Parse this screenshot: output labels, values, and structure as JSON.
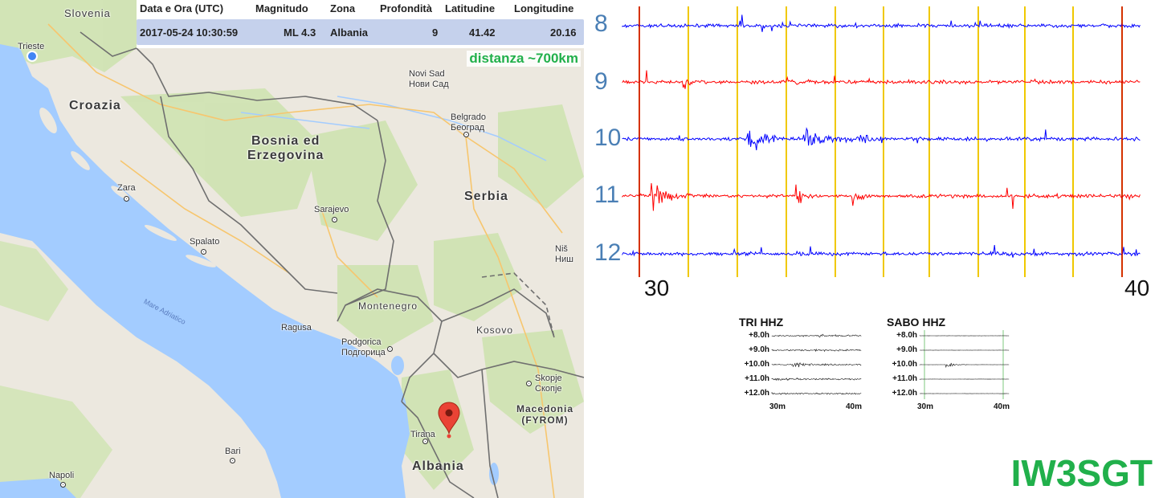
{
  "event_table": {
    "headers": [
      "Data e Ora (UTC)",
      "Magnitudo",
      "Zona",
      "Profondità",
      "Latitudine",
      "Longitudine"
    ],
    "row": [
      "2017-05-24 10:30:59",
      "ML 4.3",
      "Albania",
      "9",
      "41.42",
      "20.16"
    ]
  },
  "distance_label": "distanza ~700km",
  "map": {
    "countries": [
      "Slovenia",
      "Croazia",
      "Bosnia ed\nErzegovina",
      "Serbia",
      "Montenegro",
      "Kosovo",
      "Macedonia\n(FYROM)",
      "Albania"
    ],
    "cities": [
      "Trieste",
      "Zara",
      "Spalato",
      "Sarajevo",
      "Novi Sad\nНови Сад",
      "Belgrado\nБеоград",
      "Niš\nНиш",
      "Ragusa",
      "Podgorica\nПодгорица",
      "Skopje\nСкопје",
      "Tirana",
      "Bari",
      "Napoli"
    ],
    "sea": "Mare Adriatico",
    "colors": {
      "sea": "#a3ccff",
      "land": "#ece8df",
      "green": "#cfe3b1",
      "border": "#6f6f6f"
    }
  },
  "helicorder": {
    "hour_labels": [
      "8",
      "9",
      "10",
      "11",
      "12"
    ],
    "x_tick_labels": [
      "30",
      "40"
    ],
    "trace_colors": [
      "#0000ff",
      "#ff0000",
      "#0000ff",
      "#ff0000",
      "#0000ff"
    ],
    "marker_colors": {
      "minute": "#f0c800",
      "event": "#cc0000"
    }
  },
  "thumbnails": [
    {
      "title": "TRI HHZ",
      "hour_labels": [
        "+8.0h",
        "+9.0h",
        "+10.0h",
        "+11.0h",
        "+12.0h"
      ],
      "x_labels": [
        "30m",
        "40m"
      ]
    },
    {
      "title": "SABO HHZ",
      "hour_labels": [
        "+8.0h",
        "+9.0h",
        "+10.0h",
        "+11.0h",
        "+12.0h"
      ],
      "x_labels": [
        "30m",
        "40m"
      ]
    }
  ],
  "callsign": "IW3SGT"
}
